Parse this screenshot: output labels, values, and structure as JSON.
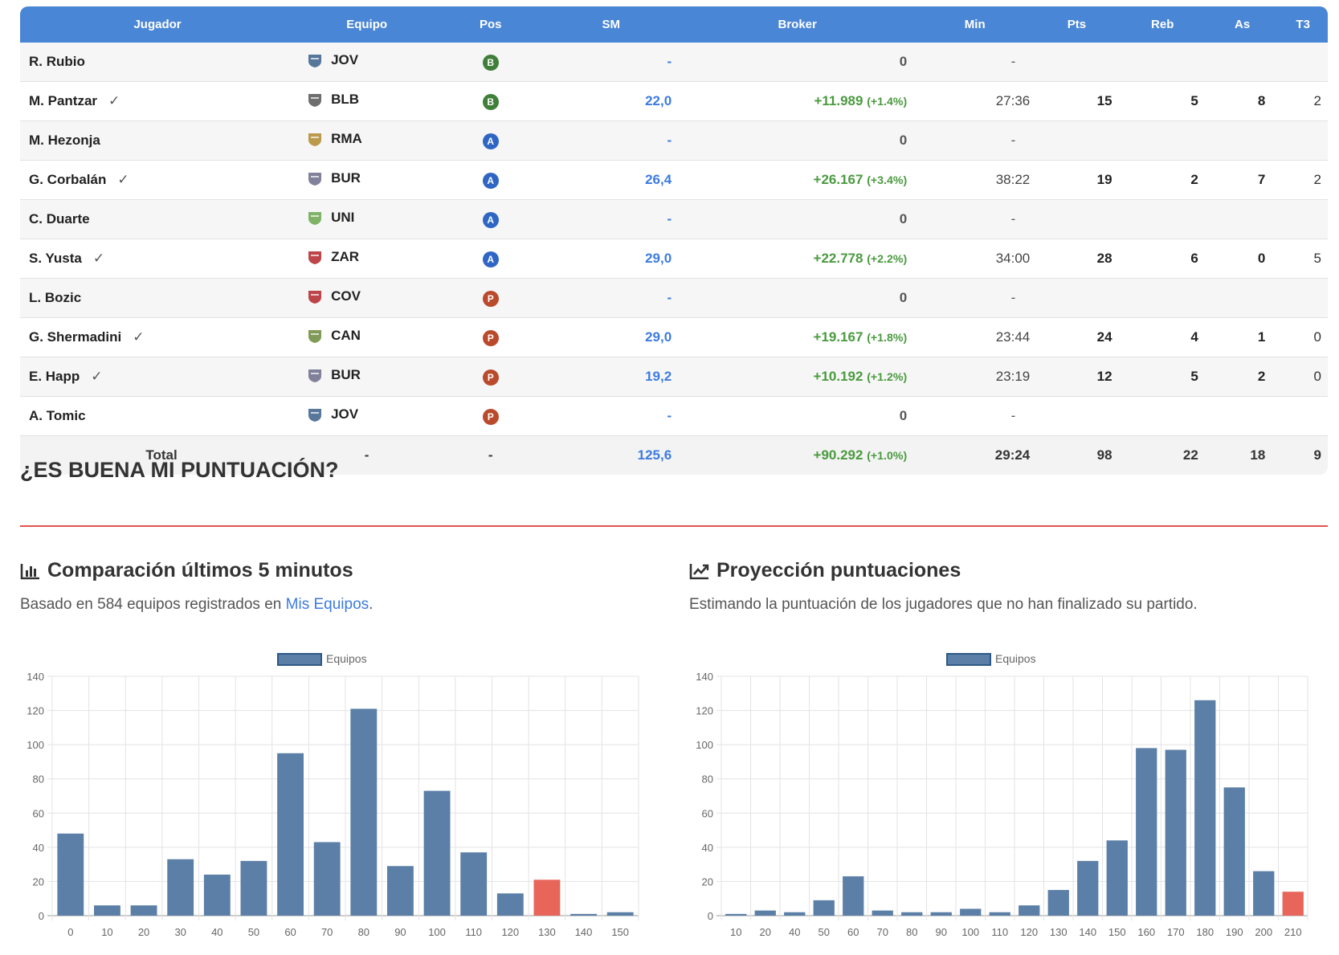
{
  "table": {
    "headers": [
      "Jugador",
      "Equipo",
      "Pos",
      "SM",
      "Broker",
      "Min",
      "Pts",
      "Reb",
      "As",
      "T3"
    ],
    "rows": [
      {
        "name": "R. Rubio",
        "check": "",
        "team": "JOV",
        "pos": "B",
        "sm": "-",
        "broker": "0",
        "broker_pct": "",
        "min": "-",
        "pts": "",
        "reb": "",
        "as": "",
        "t3": ""
      },
      {
        "name": "M. Pantzar",
        "check": "✓",
        "team": "BLB",
        "pos": "B",
        "sm": "22,0",
        "broker": "+11.989",
        "broker_pct": "(+1.4%)",
        "min": "27:36",
        "pts": "15",
        "reb": "5",
        "as": "8",
        "t3": "2"
      },
      {
        "name": "M. Hezonja",
        "check": "",
        "team": "RMA",
        "pos": "A",
        "sm": "-",
        "broker": "0",
        "broker_pct": "",
        "min": "-",
        "pts": "",
        "reb": "",
        "as": "",
        "t3": ""
      },
      {
        "name": "G. Corbalán",
        "check": "✓",
        "team": "BUR",
        "pos": "A",
        "sm": "26,4",
        "broker": "+26.167",
        "broker_pct": "(+3.4%)",
        "min": "38:22",
        "pts": "19",
        "reb": "2",
        "as": "7",
        "t3": "2"
      },
      {
        "name": "C. Duarte",
        "check": "",
        "team": "UNI",
        "pos": "A",
        "sm": "-",
        "broker": "0",
        "broker_pct": "",
        "min": "-",
        "pts": "",
        "reb": "",
        "as": "",
        "t3": ""
      },
      {
        "name": "S. Yusta",
        "check": "✓",
        "team": "ZAR",
        "pos": "A",
        "sm": "29,0",
        "broker": "+22.778",
        "broker_pct": "(+2.2%)",
        "min": "34:00",
        "pts": "28",
        "reb": "6",
        "as": "0",
        "t3": "5"
      },
      {
        "name": "L. Bozic",
        "check": "",
        "team": "COV",
        "pos": "P",
        "sm": "-",
        "broker": "0",
        "broker_pct": "",
        "min": "-",
        "pts": "",
        "reb": "",
        "as": "",
        "t3": ""
      },
      {
        "name": "G. Shermadini",
        "check": "✓",
        "team": "CAN",
        "pos": "P",
        "sm": "29,0",
        "broker": "+19.167",
        "broker_pct": "(+1.8%)",
        "min": "23:44",
        "pts": "24",
        "reb": "4",
        "as": "1",
        "t3": "0"
      },
      {
        "name": "E. Happ",
        "check": "✓",
        "team": "BUR",
        "pos": "P",
        "sm": "19,2",
        "broker": "+10.192",
        "broker_pct": "(+1.2%)",
        "min": "23:19",
        "pts": "12",
        "reb": "5",
        "as": "2",
        "t3": "0"
      },
      {
        "name": "A. Tomic",
        "check": "",
        "team": "JOV",
        "pos": "P",
        "sm": "-",
        "broker": "0",
        "broker_pct": "",
        "min": "-",
        "pts": "",
        "reb": "",
        "as": "",
        "t3": ""
      }
    ],
    "total": {
      "label": "Total",
      "team": "-",
      "pos": "-",
      "sm": "125,6",
      "broker": "+90.292",
      "broker_pct": "(+1.0%)",
      "min": "29:24",
      "pts": "98",
      "reb": "22",
      "as": "18",
      "t3": "9"
    }
  },
  "colors": {
    "header_bg": "#4a86d6",
    "pos_B": "#3f7f3a",
    "pos_A": "#2f66c4",
    "pos_P": "#b94a2c",
    "bar": "#5b7fa6",
    "bar_highlight": "#e8655a",
    "rule": "#e3534a"
  },
  "section": {
    "title": "¿ES BUENA MI PUNTUACIÓN?"
  },
  "chart1_text": {
    "heading": "Comparación últimos 5 minutos",
    "sub_prefix": "Basado en 584 equipos registrados en ",
    "sub_link": "Mis Equipos",
    "sub_suffix": "."
  },
  "chart2_text": {
    "heading": "Proyección puntuaciones",
    "sub": "Estimando la puntuación de los jugadores que no han finalizado su partido."
  },
  "chart_data": [
    {
      "type": "bar",
      "legend": "Equipos",
      "categories": [
        "0",
        "10",
        "20",
        "30",
        "40",
        "50",
        "60",
        "70",
        "80",
        "90",
        "100",
        "110",
        "120",
        "130",
        "140",
        "150"
      ],
      "series": [
        {
          "name": "Equipos",
          "values": [
            48,
            6,
            6,
            33,
            24,
            32,
            95,
            43,
            121,
            29,
            73,
            37,
            13,
            21,
            1,
            2
          ]
        }
      ],
      "highlight_category": "130",
      "ylim": [
        0,
        140
      ],
      "yticks": [
        0,
        20,
        40,
        60,
        80,
        100,
        120,
        140
      ],
      "grid": true,
      "legend_position": "top"
    },
    {
      "type": "bar",
      "legend": "Equipos",
      "categories": [
        "10",
        "20",
        "40",
        "50",
        "60",
        "70",
        "80",
        "90",
        "100",
        "110",
        "120",
        "130",
        "140",
        "150",
        "160",
        "170",
        "180",
        "190",
        "200",
        "210"
      ],
      "series": [
        {
          "name": "Equipos",
          "values": [
            1,
            3,
            2,
            9,
            23,
            3,
            2,
            2,
            4,
            2,
            6,
            15,
            32,
            44,
            98,
            97,
            126,
            75,
            26,
            14
          ]
        }
      ],
      "highlight_category": "210",
      "ylim": [
        0,
        140
      ],
      "yticks": [
        0,
        20,
        40,
        60,
        80,
        100,
        120,
        140
      ],
      "grid": true,
      "legend_position": "top"
    }
  ]
}
